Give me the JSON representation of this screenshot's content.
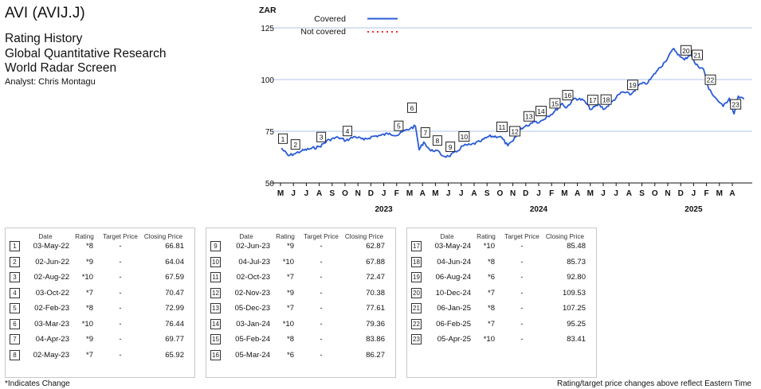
{
  "header": {
    "title": "AVI (AVIJ.J)",
    "subtitle_lines": [
      "Rating History",
      "Global Quantitative Research",
      "World Radar Screen"
    ],
    "analyst": "Analyst: Chris Montagu"
  },
  "chart_data": {
    "type": "line",
    "ylabel": "ZAR",
    "ylim": [
      50,
      135
    ],
    "yticks": [
      50,
      75,
      100,
      125
    ],
    "grid": true,
    "legend": {
      "position": "top-left",
      "entries": [
        {
          "label": "Covered",
          "style": "solid",
          "color": "#2a5bd7"
        },
        {
          "label": "Not covered",
          "style": "dotted",
          "color": "#e53030"
        }
      ]
    },
    "x_month_labels": [
      "M",
      "J",
      "J",
      "A",
      "S",
      "O",
      "N",
      "D",
      "J",
      "F",
      "M",
      "A",
      "M",
      "J",
      "J",
      "A",
      "S",
      "O",
      "N",
      "D",
      "J",
      "F",
      "M",
      "A",
      "M",
      "J",
      "J",
      "A",
      "S",
      "O",
      "N",
      "D",
      "J",
      "F",
      "M",
      "A"
    ],
    "x_year_labels": [
      {
        "label": "2023",
        "month_index": 8
      },
      {
        "label": "2024",
        "month_index": 20
      },
      {
        "label": "2025",
        "month_index": 32
      }
    ],
    "series": [
      {
        "name": "Covered",
        "color": "#2a5bd7",
        "points": [
          [
            "2022-05-03",
            66.8
          ],
          [
            "2022-05-20",
            63.2
          ],
          [
            "2022-06-02",
            64.0
          ],
          [
            "2022-06-20",
            65.5
          ],
          [
            "2022-07-10",
            66.5
          ],
          [
            "2022-08-02",
            67.6
          ],
          [
            "2022-08-25",
            71.0
          ],
          [
            "2022-09-15",
            72.0
          ],
          [
            "2022-10-03",
            70.5
          ],
          [
            "2022-10-25",
            72.5
          ],
          [
            "2022-11-15",
            70.8
          ],
          [
            "2022-12-05",
            72.5
          ],
          [
            "2022-12-25",
            73.0
          ],
          [
            "2023-01-15",
            74.0
          ],
          [
            "2023-02-02",
            73.0
          ],
          [
            "2023-02-20",
            75.5
          ],
          [
            "2023-03-03",
            76.4
          ],
          [
            "2023-03-15",
            77.5
          ],
          [
            "2023-03-24",
            66.0
          ],
          [
            "2023-04-04",
            69.8
          ],
          [
            "2023-04-20",
            65.5
          ],
          [
            "2023-05-02",
            65.9
          ],
          [
            "2023-05-20",
            63.0
          ],
          [
            "2023-06-02",
            62.9
          ],
          [
            "2023-06-20",
            65.0
          ],
          [
            "2023-07-04",
            67.9
          ],
          [
            "2023-07-25",
            68.5
          ],
          [
            "2023-08-15",
            70.0
          ],
          [
            "2023-09-05",
            72.5
          ],
          [
            "2023-10-02",
            72.5
          ],
          [
            "2023-10-20",
            68.0
          ],
          [
            "2023-11-02",
            70.4
          ],
          [
            "2023-11-20",
            76.5
          ],
          [
            "2023-12-05",
            77.6
          ],
          [
            "2023-12-20",
            80.0
          ],
          [
            "2024-01-03",
            79.4
          ],
          [
            "2024-01-20",
            82.0
          ],
          [
            "2024-02-05",
            83.9
          ],
          [
            "2024-02-25",
            88.5
          ],
          [
            "2024-03-05",
            86.3
          ],
          [
            "2024-03-25",
            91.0
          ],
          [
            "2024-04-15",
            90.0
          ],
          [
            "2024-05-03",
            85.5
          ],
          [
            "2024-05-20",
            88.0
          ],
          [
            "2024-06-04",
            85.7
          ],
          [
            "2024-06-25",
            90.0
          ],
          [
            "2024-07-15",
            94.0
          ],
          [
            "2024-08-06",
            92.8
          ],
          [
            "2024-08-25",
            97.5
          ],
          [
            "2024-09-15",
            98.5
          ],
          [
            "2024-10-05",
            104.0
          ],
          [
            "2024-10-25",
            108.5
          ],
          [
            "2024-11-15",
            115.0
          ],
          [
            "2024-11-30",
            111.0
          ],
          [
            "2024-12-10",
            109.5
          ],
          [
            "2024-12-25",
            112.5
          ],
          [
            "2025-01-06",
            107.3
          ],
          [
            "2025-01-25",
            105.0
          ],
          [
            "2025-02-06",
            95.3
          ],
          [
            "2025-02-25",
            90.0
          ],
          [
            "2025-03-10",
            87.0
          ],
          [
            "2025-03-25",
            91.0
          ],
          [
            "2025-04-05",
            83.4
          ],
          [
            "2025-04-15",
            92.0
          ],
          [
            "2025-04-28",
            90.5
          ]
        ]
      }
    ],
    "markers": [
      {
        "n": "1",
        "date": "2022-05-03"
      },
      {
        "n": "2",
        "date": "2022-06-02"
      },
      {
        "n": "3",
        "date": "2022-08-02"
      },
      {
        "n": "4",
        "date": "2022-10-03"
      },
      {
        "n": "5",
        "date": "2023-02-02"
      },
      {
        "n": "6",
        "date": "2023-03-03"
      },
      {
        "n": "7",
        "date": "2023-04-04"
      },
      {
        "n": "8",
        "date": "2023-05-02"
      },
      {
        "n": "9",
        "date": "2023-06-02"
      },
      {
        "n": "10",
        "date": "2023-07-04"
      },
      {
        "n": "11",
        "date": "2023-10-02"
      },
      {
        "n": "12",
        "date": "2023-11-02"
      },
      {
        "n": "13",
        "date": "2023-12-05"
      },
      {
        "n": "14",
        "date": "2024-01-03"
      },
      {
        "n": "15",
        "date": "2024-02-05"
      },
      {
        "n": "16",
        "date": "2024-03-05"
      },
      {
        "n": "17",
        "date": "2024-05-03"
      },
      {
        "n": "18",
        "date": "2024-06-04"
      },
      {
        "n": "19",
        "date": "2024-08-06"
      },
      {
        "n": "20",
        "date": "2024-12-10"
      },
      {
        "n": "21",
        "date": "2025-01-06"
      },
      {
        "n": "22",
        "date": "2025-02-06"
      },
      {
        "n": "23",
        "date": "2025-04-05"
      }
    ]
  },
  "table": {
    "headers": {
      "date": "Date",
      "rating": "Rating",
      "target_price": "Target Price",
      "closing_price": "Closing Price"
    },
    "columns": [
      [
        {
          "n": "1",
          "date": "03-May-22",
          "rating": "*8",
          "tp": "-",
          "cp": "66.81"
        },
        {
          "n": "2",
          "date": "02-Jun-22",
          "rating": "*9",
          "tp": "-",
          "cp": "64.04"
        },
        {
          "n": "3",
          "date": "02-Aug-22",
          "rating": "*10",
          "tp": "-",
          "cp": "67.59"
        },
        {
          "n": "4",
          "date": "03-Oct-22",
          "rating": "*7",
          "tp": "-",
          "cp": "70.47"
        },
        {
          "n": "5",
          "date": "02-Feb-23",
          "rating": "*8",
          "tp": "-",
          "cp": "72.99"
        },
        {
          "n": "6",
          "date": "03-Mar-23",
          "rating": "*10",
          "tp": "-",
          "cp": "76.44"
        },
        {
          "n": "7",
          "date": "04-Apr-23",
          "rating": "*9",
          "tp": "-",
          "cp": "69.77"
        },
        {
          "n": "8",
          "date": "02-May-23",
          "rating": "*7",
          "tp": "-",
          "cp": "65.92"
        }
      ],
      [
        {
          "n": "9",
          "date": "02-Jun-23",
          "rating": "*9",
          "tp": "-",
          "cp": "62.87"
        },
        {
          "n": "10",
          "date": "04-Jul-23",
          "rating": "*10",
          "tp": "-",
          "cp": "67.88"
        },
        {
          "n": "11",
          "date": "02-Oct-23",
          "rating": "*7",
          "tp": "-",
          "cp": "72.47"
        },
        {
          "n": "12",
          "date": "02-Nov-23",
          "rating": "*9",
          "tp": "-",
          "cp": "70.38"
        },
        {
          "n": "13",
          "date": "05-Dec-23",
          "rating": "*7",
          "tp": "-",
          "cp": "77.61"
        },
        {
          "n": "14",
          "date": "03-Jan-24",
          "rating": "*10",
          "tp": "-",
          "cp": "79.36"
        },
        {
          "n": "15",
          "date": "05-Feb-24",
          "rating": "*8",
          "tp": "-",
          "cp": "83.86"
        },
        {
          "n": "16",
          "date": "05-Mar-24",
          "rating": "*6",
          "tp": "-",
          "cp": "86.27"
        }
      ],
      [
        {
          "n": "17",
          "date": "03-May-24",
          "rating": "*10",
          "tp": "-",
          "cp": "85.48"
        },
        {
          "n": "18",
          "date": "04-Jun-24",
          "rating": "*8",
          "tp": "-",
          "cp": "85.73"
        },
        {
          "n": "19",
          "date": "06-Aug-24",
          "rating": "*6",
          "tp": "-",
          "cp": "92.80"
        },
        {
          "n": "20",
          "date": "10-Dec-24",
          "rating": "*7",
          "tp": "-",
          "cp": "109.53"
        },
        {
          "n": "21",
          "date": "06-Jan-25",
          "rating": "*8",
          "tp": "-",
          "cp": "107.25"
        },
        {
          "n": "22",
          "date": "06-Feb-25",
          "rating": "*7",
          "tp": "-",
          "cp": "95.25"
        },
        {
          "n": "23",
          "date": "05-Apr-25",
          "rating": "*10",
          "tp": "-",
          "cp": "83.41"
        }
      ]
    ]
  },
  "footer": {
    "left": "*Indicates Change",
    "right": "Rating/target price changes above reflect Eastern Time"
  }
}
